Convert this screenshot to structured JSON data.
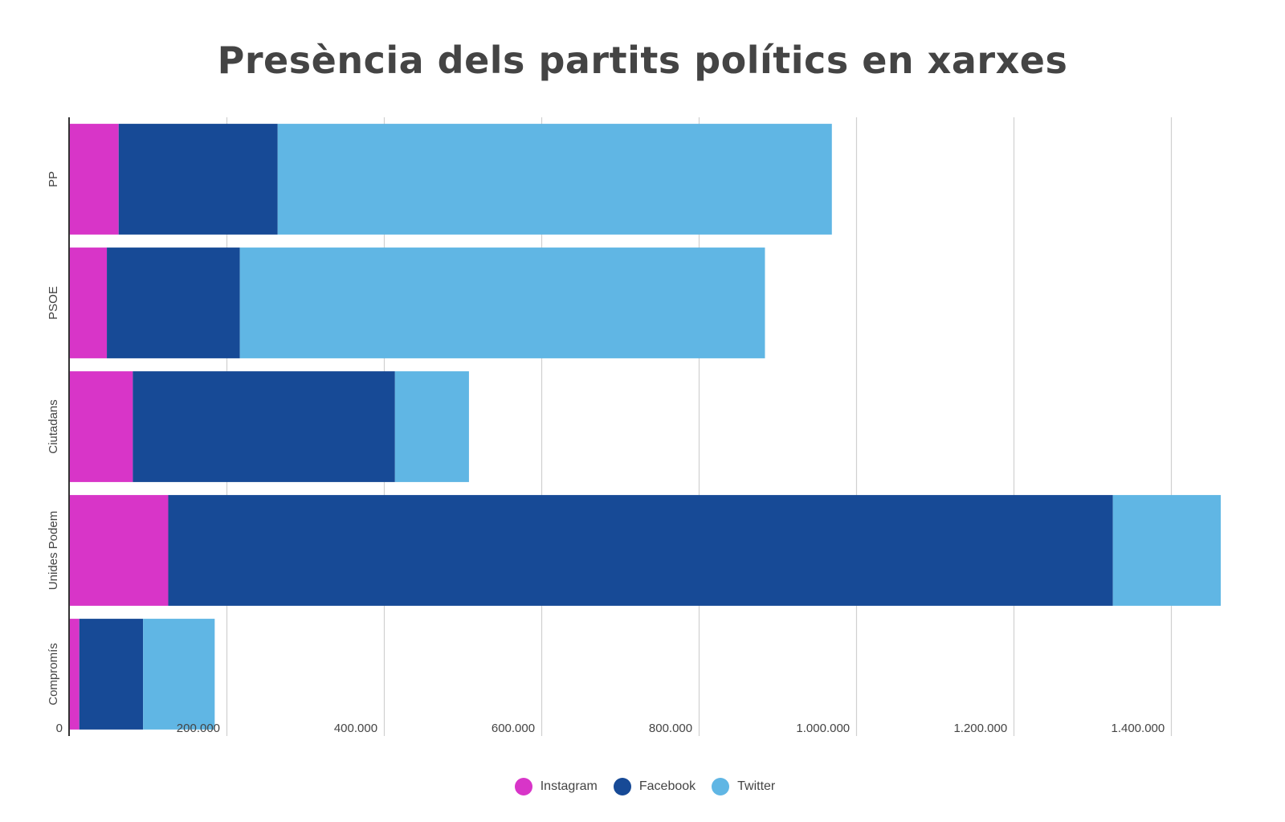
{
  "chart_data": {
    "type": "bar",
    "orientation": "horizontal",
    "stacked": true,
    "title": "Presència dels partits polítics en xarxes",
    "xlabel": "",
    "ylabel": "",
    "categories": [
      "PP",
      "PSOE",
      "Ciutadans",
      "Unides Podem",
      "Compromís"
    ],
    "series": [
      {
        "name": "Instagram",
        "color": "#D835C8",
        "values": [
          63000,
          48000,
          81000,
          126000,
          13000
        ]
      },
      {
        "name": "Facebook",
        "color": "#174A96",
        "values": [
          202000,
          169000,
          333000,
          1200000,
          81000
        ]
      },
      {
        "name": "Twitter",
        "color": "#60B6E4",
        "values": [
          704000,
          667000,
          94000,
          137000,
          91000
        ]
      }
    ],
    "xlim": [
      0,
      1462000
    ],
    "xticks": [
      0,
      200000,
      400000,
      600000,
      800000,
      1000000,
      1200000,
      1400000
    ],
    "xtick_labels": [
      "0",
      "200.000",
      "400.000",
      "600.000",
      "800.000",
      "1.000.000",
      "1.200.000",
      "1.400.000"
    ],
    "grid": true,
    "legend_position": "bottom-center"
  }
}
